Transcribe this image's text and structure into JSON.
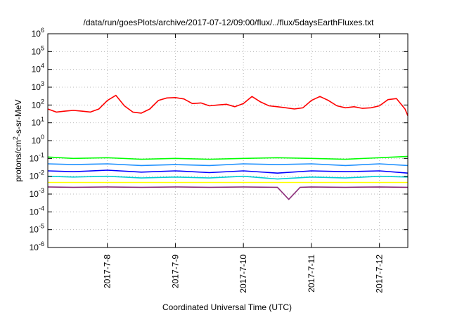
{
  "chart_data": {
    "type": "line",
    "title": "/data/run/goesPlots/archive/2017-07-12/09:00/flux/../flux/5daysEarthFluxes.txt",
    "xlabel": "Coordinated Universal Time (UTC)",
    "ylabel": {
      "pre": "protons/cm",
      "sup": "2",
      "post": "-s-sr-MeV"
    },
    "yscale": "log",
    "ylim_exp": [
      -6,
      6
    ],
    "y_ticks": [
      {
        "base": "10",
        "exp": "-6"
      },
      {
        "base": "10",
        "exp": "-5"
      },
      {
        "base": "10",
        "exp": "-4"
      },
      {
        "base": "10",
        "exp": "-3"
      },
      {
        "base": "10",
        "exp": "-2"
      },
      {
        "base": "10",
        "exp": "-1"
      },
      {
        "base": "10",
        "exp": "0"
      },
      {
        "base": "10",
        "exp": "1"
      },
      {
        "base": "10",
        "exp": "2"
      },
      {
        "base": "10",
        "exp": "3"
      },
      {
        "base": "10",
        "exp": "4"
      },
      {
        "base": "10",
        "exp": "5"
      },
      {
        "base": "10",
        "exp": "6"
      }
    ],
    "x_ticks": [
      "2017-7-8",
      "2017-7-9",
      "2017-7-10",
      "2017-7-11",
      "2017-7-12"
    ],
    "xlim": [
      "2017-07-07T03:00",
      "2017-07-12T10:00"
    ],
    "grid": true,
    "legend": "none",
    "series": [
      {
        "color": "#ff0000",
        "x": [
          "2017-07-07T03:00",
          "2017-07-07T06:00",
          "2017-07-07T09:00",
          "2017-07-07T12:00",
          "2017-07-07T15:00",
          "2017-07-07T18:00",
          "2017-07-07T21:00",
          "2017-07-08T00:00",
          "2017-07-08T03:00",
          "2017-07-08T06:00",
          "2017-07-08T09:00",
          "2017-07-08T12:00",
          "2017-07-08T15:00",
          "2017-07-08T18:00",
          "2017-07-08T21:00",
          "2017-07-09T00:00",
          "2017-07-09T03:00",
          "2017-07-09T06:00",
          "2017-07-09T09:00",
          "2017-07-09T12:00",
          "2017-07-09T15:00",
          "2017-07-09T18:00",
          "2017-07-09T21:00",
          "2017-07-10T00:00",
          "2017-07-10T03:00",
          "2017-07-10T06:00",
          "2017-07-10T09:00",
          "2017-07-10T12:00",
          "2017-07-10T15:00",
          "2017-07-10T18:00",
          "2017-07-10T21:00",
          "2017-07-11T00:00",
          "2017-07-11T03:00",
          "2017-07-11T06:00",
          "2017-07-11T09:00",
          "2017-07-11T12:00",
          "2017-07-11T15:00",
          "2017-07-11T18:00",
          "2017-07-11T21:00",
          "2017-07-12T00:00",
          "2017-07-12T03:00",
          "2017-07-12T06:00",
          "2017-07-12T09:00",
          "2017-07-12T10:00"
        ],
        "y": [
          60,
          40,
          45,
          50,
          45,
          40,
          60,
          180,
          350,
          90,
          40,
          35,
          60,
          180,
          250,
          260,
          220,
          120,
          130,
          90,
          100,
          110,
          80,
          120,
          300,
          150,
          90,
          80,
          70,
          60,
          70,
          180,
          300,
          180,
          90,
          70,
          80,
          65,
          70,
          90,
          200,
          230,
          60,
          25
        ]
      },
      {
        "color": "#00ff00",
        "x": [
          "2017-07-07T03:00",
          "2017-07-07T12:00",
          "2017-07-08T00:00",
          "2017-07-08T12:00",
          "2017-07-09T00:00",
          "2017-07-09T12:00",
          "2017-07-10T00:00",
          "2017-07-10T12:00",
          "2017-07-11T00:00",
          "2017-07-11T12:00",
          "2017-07-12T00:00",
          "2017-07-12T10:00"
        ],
        "y": [
          0.12,
          0.1,
          0.11,
          0.09,
          0.1,
          0.09,
          0.1,
          0.11,
          0.1,
          0.09,
          0.11,
          0.13
        ]
      },
      {
        "color": "#1e90ff",
        "x": [
          "2017-07-07T03:00",
          "2017-07-07T12:00",
          "2017-07-08T00:00",
          "2017-07-08T12:00",
          "2017-07-09T00:00",
          "2017-07-09T12:00",
          "2017-07-10T00:00",
          "2017-07-10T12:00",
          "2017-07-11T00:00",
          "2017-07-11T12:00",
          "2017-07-12T00:00",
          "2017-07-12T10:00"
        ],
        "y": [
          0.05,
          0.045,
          0.05,
          0.04,
          0.045,
          0.04,
          0.05,
          0.045,
          0.05,
          0.04,
          0.05,
          0.04
        ]
      },
      {
        "color": "#0000ff",
        "x": [
          "2017-07-07T03:00",
          "2017-07-07T12:00",
          "2017-07-08T00:00",
          "2017-07-08T12:00",
          "2017-07-09T00:00",
          "2017-07-09T12:00",
          "2017-07-10T00:00",
          "2017-07-10T12:00",
          "2017-07-11T00:00",
          "2017-07-11T12:00",
          "2017-07-12T00:00",
          "2017-07-12T10:00"
        ],
        "y": [
          0.02,
          0.018,
          0.022,
          0.017,
          0.02,
          0.016,
          0.02,
          0.015,
          0.02,
          0.018,
          0.02,
          0.015
        ]
      },
      {
        "color": "#00ced1",
        "x": [
          "2017-07-07T03:00",
          "2017-07-07T12:00",
          "2017-07-08T00:00",
          "2017-07-08T12:00",
          "2017-07-09T00:00",
          "2017-07-09T12:00",
          "2017-07-10T00:00",
          "2017-07-10T12:00",
          "2017-07-11T00:00",
          "2017-07-11T12:00",
          "2017-07-12T00:00",
          "2017-07-12T10:00"
        ],
        "y": [
          0.01,
          0.009,
          0.01,
          0.008,
          0.009,
          0.008,
          0.01,
          0.007,
          0.009,
          0.008,
          0.01,
          0.009
        ]
      },
      {
        "color": "#ffff00",
        "x": [
          "2017-07-07T03:00",
          "2017-07-08T00:00",
          "2017-07-09T00:00",
          "2017-07-10T00:00",
          "2017-07-11T00:00",
          "2017-07-12T00:00",
          "2017-07-12T10:00"
        ],
        "y": [
          0.0045,
          0.0045,
          0.0045,
          0.0045,
          0.0045,
          0.0045,
          0.0045
        ]
      },
      {
        "color": "#8b2d7a",
        "x": [
          "2017-07-07T03:00",
          "2017-07-07T12:00",
          "2017-07-08T00:00",
          "2017-07-08T12:00",
          "2017-07-09T00:00",
          "2017-07-09T12:00",
          "2017-07-10T00:00",
          "2017-07-10T12:00",
          "2017-07-10T16:00",
          "2017-07-10T20:00",
          "2017-07-11T00:00",
          "2017-07-11T12:00",
          "2017-07-12T00:00",
          "2017-07-12T10:00"
        ],
        "y": [
          0.0025,
          0.0024,
          0.0025,
          0.0024,
          0.0025,
          0.0024,
          0.0025,
          0.0024,
          0.0005,
          0.0024,
          0.0025,
          0.0024,
          0.0025,
          0.0024
        ]
      }
    ]
  }
}
